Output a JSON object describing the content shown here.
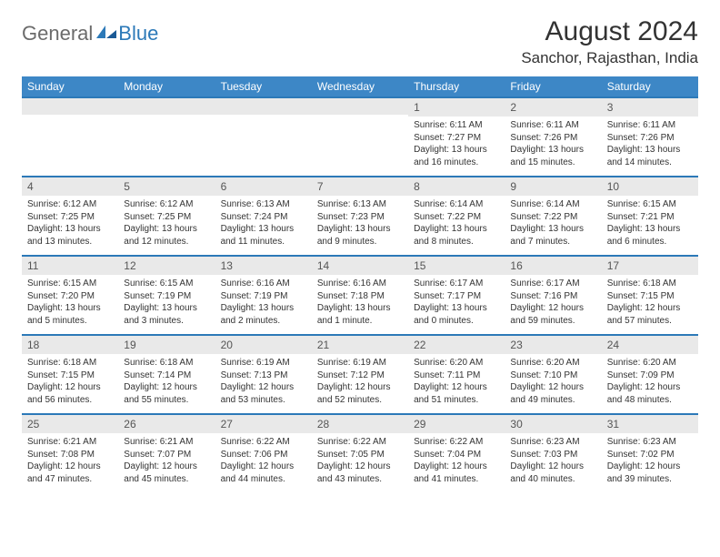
{
  "document": {
    "colors": {
      "header_band": "#3d87c6",
      "week_divider": "#2c79b8",
      "daynum_band": "#e9e9e9",
      "text": "#333333",
      "logo_gray": "#6b6b6b",
      "logo_blue": "#2c79b8",
      "background": "#ffffff"
    },
    "typography": {
      "title_fontsize": 30,
      "location_fontsize": 17,
      "dayhead_fontsize": 12,
      "daynum_fontsize": 12,
      "cell_fontsize": 10,
      "logo_fontsize": 22
    },
    "logo": {
      "part1": "General",
      "part2": "Blue"
    },
    "title": "August 2024",
    "location": "Sanchor, Rajasthan, India",
    "day_headers": [
      "Sunday",
      "Monday",
      "Tuesday",
      "Wednesday",
      "Thursday",
      "Friday",
      "Saturday"
    ],
    "weeks": [
      [
        {
          "num": "",
          "sunrise": "",
          "sunset": "",
          "daylight": ""
        },
        {
          "num": "",
          "sunrise": "",
          "sunset": "",
          "daylight": ""
        },
        {
          "num": "",
          "sunrise": "",
          "sunset": "",
          "daylight": ""
        },
        {
          "num": "",
          "sunrise": "",
          "sunset": "",
          "daylight": ""
        },
        {
          "num": "1",
          "sunrise": "Sunrise: 6:11 AM",
          "sunset": "Sunset: 7:27 PM",
          "daylight": "Daylight: 13 hours and 16 minutes."
        },
        {
          "num": "2",
          "sunrise": "Sunrise: 6:11 AM",
          "sunset": "Sunset: 7:26 PM",
          "daylight": "Daylight: 13 hours and 15 minutes."
        },
        {
          "num": "3",
          "sunrise": "Sunrise: 6:11 AM",
          "sunset": "Sunset: 7:26 PM",
          "daylight": "Daylight: 13 hours and 14 minutes."
        }
      ],
      [
        {
          "num": "4",
          "sunrise": "Sunrise: 6:12 AM",
          "sunset": "Sunset: 7:25 PM",
          "daylight": "Daylight: 13 hours and 13 minutes."
        },
        {
          "num": "5",
          "sunrise": "Sunrise: 6:12 AM",
          "sunset": "Sunset: 7:25 PM",
          "daylight": "Daylight: 13 hours and 12 minutes."
        },
        {
          "num": "6",
          "sunrise": "Sunrise: 6:13 AM",
          "sunset": "Sunset: 7:24 PM",
          "daylight": "Daylight: 13 hours and 11 minutes."
        },
        {
          "num": "7",
          "sunrise": "Sunrise: 6:13 AM",
          "sunset": "Sunset: 7:23 PM",
          "daylight": "Daylight: 13 hours and 9 minutes."
        },
        {
          "num": "8",
          "sunrise": "Sunrise: 6:14 AM",
          "sunset": "Sunset: 7:22 PM",
          "daylight": "Daylight: 13 hours and 8 minutes."
        },
        {
          "num": "9",
          "sunrise": "Sunrise: 6:14 AM",
          "sunset": "Sunset: 7:22 PM",
          "daylight": "Daylight: 13 hours and 7 minutes."
        },
        {
          "num": "10",
          "sunrise": "Sunrise: 6:15 AM",
          "sunset": "Sunset: 7:21 PM",
          "daylight": "Daylight: 13 hours and 6 minutes."
        }
      ],
      [
        {
          "num": "11",
          "sunrise": "Sunrise: 6:15 AM",
          "sunset": "Sunset: 7:20 PM",
          "daylight": "Daylight: 13 hours and 5 minutes."
        },
        {
          "num": "12",
          "sunrise": "Sunrise: 6:15 AM",
          "sunset": "Sunset: 7:19 PM",
          "daylight": "Daylight: 13 hours and 3 minutes."
        },
        {
          "num": "13",
          "sunrise": "Sunrise: 6:16 AM",
          "sunset": "Sunset: 7:19 PM",
          "daylight": "Daylight: 13 hours and 2 minutes."
        },
        {
          "num": "14",
          "sunrise": "Sunrise: 6:16 AM",
          "sunset": "Sunset: 7:18 PM",
          "daylight": "Daylight: 13 hours and 1 minute."
        },
        {
          "num": "15",
          "sunrise": "Sunrise: 6:17 AM",
          "sunset": "Sunset: 7:17 PM",
          "daylight": "Daylight: 13 hours and 0 minutes."
        },
        {
          "num": "16",
          "sunrise": "Sunrise: 6:17 AM",
          "sunset": "Sunset: 7:16 PM",
          "daylight": "Daylight: 12 hours and 59 minutes."
        },
        {
          "num": "17",
          "sunrise": "Sunrise: 6:18 AM",
          "sunset": "Sunset: 7:15 PM",
          "daylight": "Daylight: 12 hours and 57 minutes."
        }
      ],
      [
        {
          "num": "18",
          "sunrise": "Sunrise: 6:18 AM",
          "sunset": "Sunset: 7:15 PM",
          "daylight": "Daylight: 12 hours and 56 minutes."
        },
        {
          "num": "19",
          "sunrise": "Sunrise: 6:18 AM",
          "sunset": "Sunset: 7:14 PM",
          "daylight": "Daylight: 12 hours and 55 minutes."
        },
        {
          "num": "20",
          "sunrise": "Sunrise: 6:19 AM",
          "sunset": "Sunset: 7:13 PM",
          "daylight": "Daylight: 12 hours and 53 minutes."
        },
        {
          "num": "21",
          "sunrise": "Sunrise: 6:19 AM",
          "sunset": "Sunset: 7:12 PM",
          "daylight": "Daylight: 12 hours and 52 minutes."
        },
        {
          "num": "22",
          "sunrise": "Sunrise: 6:20 AM",
          "sunset": "Sunset: 7:11 PM",
          "daylight": "Daylight: 12 hours and 51 minutes."
        },
        {
          "num": "23",
          "sunrise": "Sunrise: 6:20 AM",
          "sunset": "Sunset: 7:10 PM",
          "daylight": "Daylight: 12 hours and 49 minutes."
        },
        {
          "num": "24",
          "sunrise": "Sunrise: 6:20 AM",
          "sunset": "Sunset: 7:09 PM",
          "daylight": "Daylight: 12 hours and 48 minutes."
        }
      ],
      [
        {
          "num": "25",
          "sunrise": "Sunrise: 6:21 AM",
          "sunset": "Sunset: 7:08 PM",
          "daylight": "Daylight: 12 hours and 47 minutes."
        },
        {
          "num": "26",
          "sunrise": "Sunrise: 6:21 AM",
          "sunset": "Sunset: 7:07 PM",
          "daylight": "Daylight: 12 hours and 45 minutes."
        },
        {
          "num": "27",
          "sunrise": "Sunrise: 6:22 AM",
          "sunset": "Sunset: 7:06 PM",
          "daylight": "Daylight: 12 hours and 44 minutes."
        },
        {
          "num": "28",
          "sunrise": "Sunrise: 6:22 AM",
          "sunset": "Sunset: 7:05 PM",
          "daylight": "Daylight: 12 hours and 43 minutes."
        },
        {
          "num": "29",
          "sunrise": "Sunrise: 6:22 AM",
          "sunset": "Sunset: 7:04 PM",
          "daylight": "Daylight: 12 hours and 41 minutes."
        },
        {
          "num": "30",
          "sunrise": "Sunrise: 6:23 AM",
          "sunset": "Sunset: 7:03 PM",
          "daylight": "Daylight: 12 hours and 40 minutes."
        },
        {
          "num": "31",
          "sunrise": "Sunrise: 6:23 AM",
          "sunset": "Sunset: 7:02 PM",
          "daylight": "Daylight: 12 hours and 39 minutes."
        }
      ]
    ]
  }
}
